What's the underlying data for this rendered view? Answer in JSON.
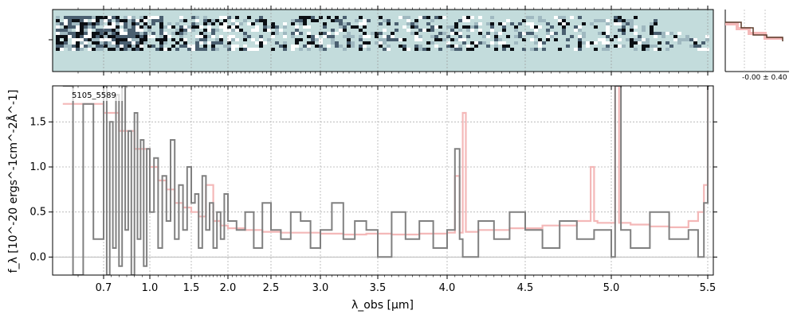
{
  "chart_data": [
    {
      "type": "heatmap",
      "panel": "2D spectrum",
      "x_axis": "wavelength",
      "y_axis": "spatial",
      "background_color": "#c3dcdc",
      "colormap": [
        "#0b0f14",
        "#4a5f70",
        "#9fb8c0",
        "#ffffff"
      ]
    },
    {
      "type": "line",
      "panel": "spectrum",
      "object_label": "5105_5589",
      "xlabel": "λ_obs [μm]",
      "ylabel": "f_λ [10^-20 ergs^-1cm^-2Å^-1]",
      "xlim": [
        0.6,
        5.52
      ],
      "ylim": [
        -0.2,
        1.9
      ],
      "x_scale": "sqrt-like (stretched at short wavelengths)",
      "x_ticks": [
        "0.7",
        "1.0",
        "1.5",
        "2.0",
        "2.5",
        "3.0",
        "3.5",
        "4.0",
        "4.5",
        "5.0",
        "5.5"
      ],
      "y_ticks": [
        "0.0",
        "0.5",
        "1.0",
        "1.5"
      ],
      "grid": true,
      "series": [
        {
          "role": "data",
          "color": "#808080",
          "style": "steps",
          "x": [
            0.62,
            0.64,
            0.66,
            0.68,
            0.7,
            0.72,
            0.74,
            0.76,
            0.78,
            0.8,
            0.82,
            0.84,
            0.86,
            0.88,
            0.9,
            0.92,
            0.94,
            0.96,
            0.98,
            1.0,
            1.05,
            1.1,
            1.15,
            1.2,
            1.25,
            1.3,
            1.35,
            1.4,
            1.45,
            1.5,
            1.55,
            1.6,
            1.65,
            1.7,
            1.75,
            1.8,
            1.85,
            1.9,
            1.95,
            2.0,
            2.1,
            2.2,
            2.3,
            2.4,
            2.5,
            2.6,
            2.7,
            2.8,
            2.9,
            3.0,
            3.1,
            3.2,
            3.3,
            3.4,
            3.5,
            3.6,
            3.7,
            3.8,
            3.9,
            4.0,
            4.05,
            4.08,
            4.1,
            4.2,
            4.3,
            4.4,
            4.5,
            4.6,
            4.7,
            4.8,
            4.9,
            5.0,
            5.02,
            5.05,
            5.1,
            5.2,
            5.3,
            5.4,
            5.45,
            5.48,
            5.5
          ],
          "y": [
            1.9,
            -0.2,
            1.7,
            0.2,
            1.9,
            -0.2,
            1.5,
            0.1,
            1.8,
            -0.1,
            1.9,
            0.3,
            1.4,
            -0.2,
            1.6,
            0.2,
            1.3,
            -0.1,
            1.2,
            0.5,
            1.1,
            0.1,
            0.9,
            0.4,
            1.3,
            0.2,
            0.8,
            0.3,
            1.0,
            0.6,
            0.7,
            0.1,
            0.9,
            0.3,
            0.6,
            0.1,
            0.5,
            0.2,
            0.7,
            0.4,
            0.3,
            0.5,
            0.1,
            0.6,
            0.3,
            0.2,
            0.5,
            0.4,
            0.1,
            0.3,
            0.6,
            0.2,
            0.4,
            0.3,
            0.0,
            0.5,
            0.2,
            0.4,
            0.1,
            0.3,
            1.2,
            0.2,
            0.0,
            0.4,
            0.2,
            0.5,
            0.3,
            0.1,
            0.4,
            0.2,
            0.3,
            0.0,
            1.9,
            0.3,
            0.1,
            0.5,
            0.2,
            0.3,
            0.0,
            0.6,
            1.9
          ]
        },
        {
          "role": "model",
          "color": "#f4b8b8",
          "style": "steps",
          "x": [
            0.62,
            0.7,
            0.8,
            0.9,
            1.0,
            1.1,
            1.2,
            1.3,
            1.4,
            1.5,
            1.6,
            1.7,
            1.8,
            1.9,
            2.0,
            2.2,
            2.4,
            2.6,
            2.8,
            3.0,
            3.2,
            3.4,
            3.6,
            3.8,
            4.0,
            4.05,
            4.08,
            4.1,
            4.12,
            4.2,
            4.4,
            4.6,
            4.8,
            4.88,
            4.9,
            4.92,
            5.0,
            5.02,
            5.04,
            5.1,
            5.2,
            5.3,
            5.4,
            5.45,
            5.48,
            5.5
          ],
          "y": [
            1.7,
            1.6,
            1.4,
            1.2,
            1.0,
            0.85,
            0.75,
            0.6,
            0.55,
            0.5,
            0.45,
            0.8,
            0.4,
            0.35,
            0.32,
            0.3,
            0.28,
            0.27,
            0.27,
            0.26,
            0.25,
            0.26,
            0.25,
            0.26,
            0.27,
            0.9,
            0.27,
            1.6,
            0.28,
            0.3,
            0.32,
            0.35,
            0.4,
            1.0,
            0.4,
            0.38,
            0.38,
            1.9,
            0.38,
            0.36,
            0.34,
            0.33,
            0.4,
            0.5,
            0.8,
            1.9
          ]
        }
      ]
    },
    {
      "type": "line",
      "panel": "spatial profile",
      "annotation": "-0.00 ± 0.40",
      "series_colors": [
        "#5a3a2a",
        "#f4b8b8"
      ]
    }
  ]
}
